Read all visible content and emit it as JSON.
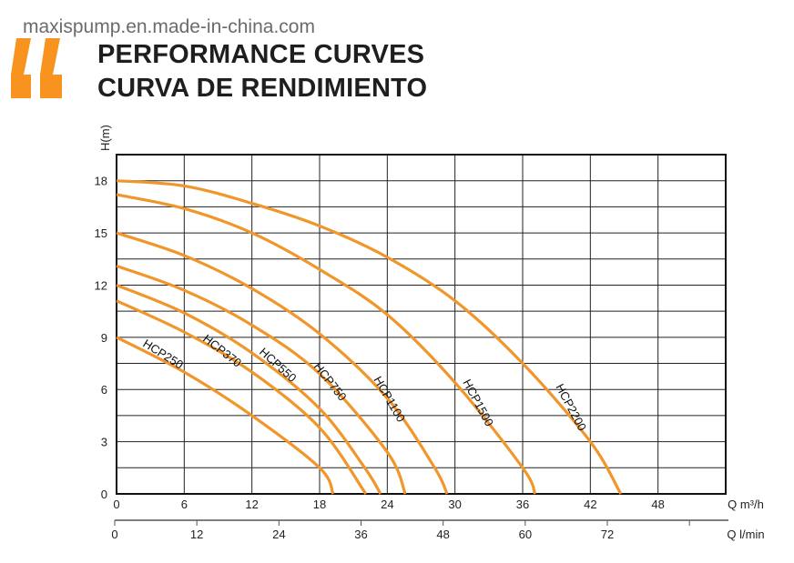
{
  "header": {
    "site": "maxispump.en.made-in-china.com",
    "title_en": "PERFORMANCE CURVES",
    "title_es": "CURVA DE RENDIMIENTO"
  },
  "colors": {
    "curve": "#F0962A",
    "grid": "#000000",
    "quote": "#F7931E",
    "text": "#1e1e1e"
  },
  "chart_data": {
    "type": "line",
    "title": "",
    "ylabel": "H(m)",
    "xlabel": "Q m³/h",
    "xlabel_secondary": "Q l/min",
    "xlim": [
      0,
      54
    ],
    "ylim": [
      0,
      19.5
    ],
    "grid": true,
    "x_ticks": [
      0,
      6,
      12,
      18,
      24,
      30,
      36,
      42,
      48
    ],
    "y_ticks": [
      0,
      3,
      6,
      9,
      12,
      15,
      18
    ],
    "secondary_x_ticks": [
      0,
      12,
      24,
      36,
      48,
      60,
      72
    ],
    "series": [
      {
        "name": "HCP250",
        "points": [
          [
            0,
            9
          ],
          [
            6,
            7.0
          ],
          [
            12,
            4.5
          ],
          [
            18,
            1.5
          ],
          [
            19.2,
            0
          ]
        ]
      },
      {
        "name": "HCP370",
        "points": [
          [
            0,
            11.1
          ],
          [
            6,
            9.3
          ],
          [
            12,
            7.0
          ],
          [
            18,
            3.8
          ],
          [
            22.1,
            0
          ]
        ]
      },
      {
        "name": "HCP550",
        "points": [
          [
            0,
            12
          ],
          [
            6,
            10.4
          ],
          [
            12,
            8.1
          ],
          [
            18,
            4.9
          ],
          [
            22,
            1.5
          ],
          [
            23.4,
            0
          ]
        ]
      },
      {
        "name": "HCP750",
        "points": [
          [
            0,
            13.1
          ],
          [
            6,
            11.7
          ],
          [
            12,
            9.7
          ],
          [
            18,
            6.9
          ],
          [
            24,
            2.4
          ],
          [
            25.6,
            0
          ]
        ]
      },
      {
        "name": "HCP1100",
        "points": [
          [
            0,
            15
          ],
          [
            6,
            13.7
          ],
          [
            12,
            11.8
          ],
          [
            18,
            9.2
          ],
          [
            24,
            5.5
          ],
          [
            28.2,
            1.5
          ],
          [
            29.3,
            0
          ]
        ]
      },
      {
        "name": "HCP1500",
        "points": [
          [
            0,
            17.2
          ],
          [
            6,
            16.4
          ],
          [
            12,
            15.0
          ],
          [
            18,
            12.9
          ],
          [
            24,
            10.3
          ],
          [
            30,
            6.4
          ],
          [
            36,
            1.5
          ],
          [
            37.1,
            0
          ]
        ]
      },
      {
        "name": "HCP2200",
        "points": [
          [
            0,
            18
          ],
          [
            6,
            17.7
          ],
          [
            12,
            16.7
          ],
          [
            18,
            15.4
          ],
          [
            24,
            13.6
          ],
          [
            30,
            11.1
          ],
          [
            36,
            7.5
          ],
          [
            42,
            3.0
          ],
          [
            44.7,
            0
          ]
        ]
      }
    ]
  }
}
